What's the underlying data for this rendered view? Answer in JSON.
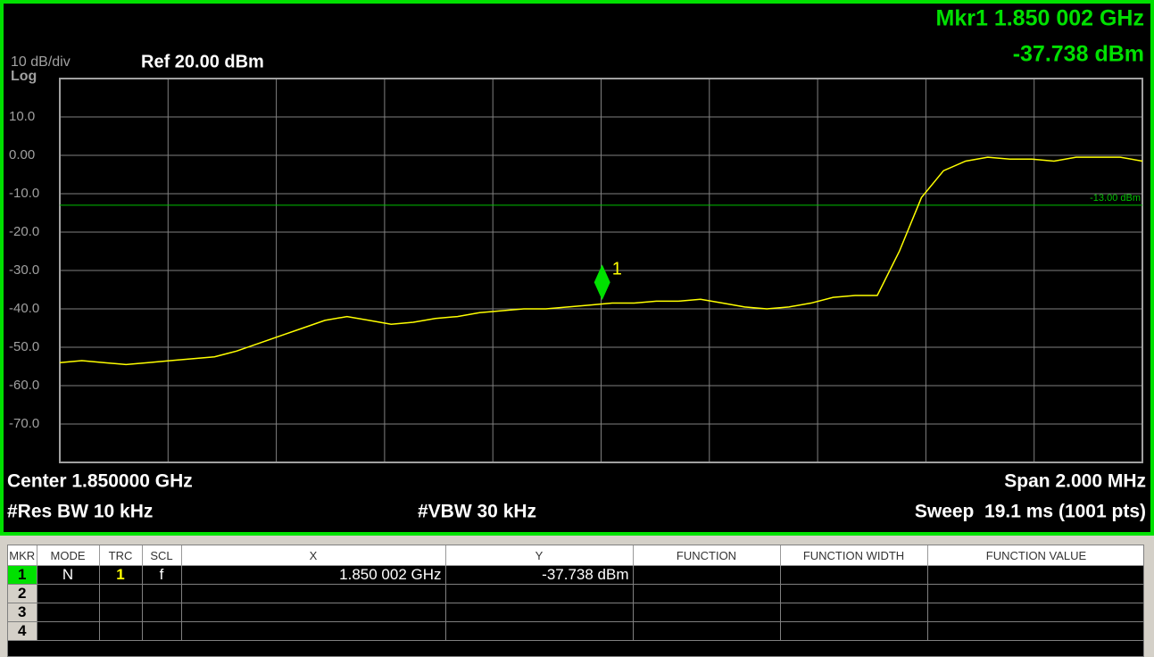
{
  "chart_data": {
    "type": "line",
    "scale_label": "10 dB/div",
    "scale_type": "Log",
    "ref_level": "Ref 20.00 dBm",
    "marker_readout": {
      "frequency": "Mkr1 1.850 002 GHz",
      "amplitude": "-37.738 dBm"
    },
    "center": "Center 1.850000 GHz",
    "span": "Span 2.000 MHz",
    "res_bw": "#Res BW 10 kHz",
    "vbw": "#VBW 30 kHz",
    "sweep": "Sweep  19.1 ms (1001 pts)",
    "xlim": [
      1849,
      1851
    ],
    "xticks": [
      1849,
      1849.2,
      1849.4,
      1849.6,
      1849.8,
      1850,
      1850.2,
      1850.4,
      1850.6,
      1850.8,
      1851
    ],
    "ylim": [
      -80,
      20
    ],
    "yticks": [
      {
        "value": 10,
        "label": "10.0"
      },
      {
        "value": 0,
        "label": "0.00"
      },
      {
        "value": -10,
        "label": "-10.0"
      },
      {
        "value": -20,
        "label": "-20.0"
      },
      {
        "value": -30,
        "label": "-30.0"
      },
      {
        "value": -40,
        "label": "-40.0"
      },
      {
        "value": -50,
        "label": "-50.0"
      },
      {
        "value": -60,
        "label": "-60.0"
      },
      {
        "value": -70,
        "label": "-70.0"
      }
    ],
    "grid": true,
    "color": "#ffff00",
    "values": [
      -54,
      -53.5,
      -54,
      -54.5,
      -54,
      -53.5,
      -53,
      -52.5,
      -51,
      -49,
      -47,
      -45,
      -43,
      -42,
      -43,
      -44,
      -43.5,
      -42.5,
      -42,
      -41,
      -40.5,
      -40,
      -40,
      -39.5,
      -39,
      -38.5,
      -38.5,
      -38,
      -38,
      -37.5,
      -38.5,
      -39.5,
      -40,
      -39.5,
      -38.5,
      -37,
      -36.5,
      -36.5,
      -25,
      -11,
      -4,
      -1.5,
      -0.5,
      -1,
      -1,
      -1.5,
      -0.5,
      -0.5,
      -0.5,
      -1.5
    ],
    "limit_line": {
      "value": -13,
      "label": "-13.00 dBm",
      "color": "#00c000"
    },
    "marker": {
      "label": "1",
      "x": 1850.002,
      "value": -37.738,
      "color": "#00e000"
    }
  },
  "table": {
    "headers": [
      "MKR",
      "MODE",
      "TRC",
      "SCL",
      "X",
      "Y",
      "FUNCTION",
      "FUNCTION WIDTH",
      "FUNCTION VALUE"
    ],
    "rows": [
      {
        "mkr": "1",
        "mode": "N",
        "trc": "1",
        "scl": "f",
        "x": "1.850 002 GHz",
        "y": "-37.738 dBm"
      },
      {
        "mkr": "2"
      },
      {
        "mkr": "3"
      },
      {
        "mkr": "4"
      }
    ]
  }
}
